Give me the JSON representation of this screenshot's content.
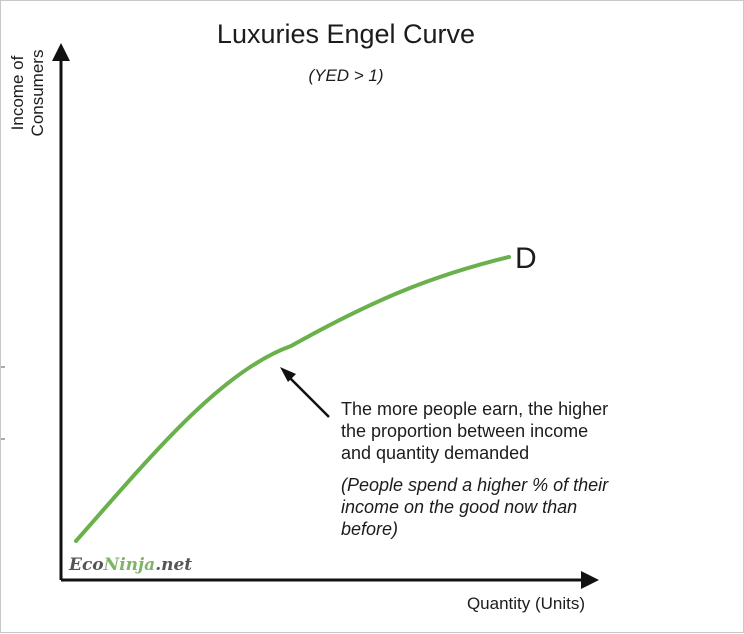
{
  "diagram": {
    "title": "Luxuries Engel Curve",
    "subtitle": "(YED > 1)",
    "y_axis_label": [
      "Income of",
      "Consumers"
    ],
    "x_axis_label": "Quantity (Units)",
    "curve_label": "D",
    "annotation_lines": [
      "The more people earn, the higher",
      "the proportion between income",
      "and quantity demanded"
    ],
    "annotation_italic_lines": [
      "(People spend a higher % of their",
      "income on the good now than",
      "before)"
    ],
    "logo": {
      "part1": "Eco",
      "part2": "Ninja",
      "part3": ".net"
    },
    "colors": {
      "curve": "#6ab04c",
      "axis": "#111111",
      "text": "#1c1c1c",
      "logo_dark": "#555555",
      "logo_green": "#7fb56a"
    }
  }
}
